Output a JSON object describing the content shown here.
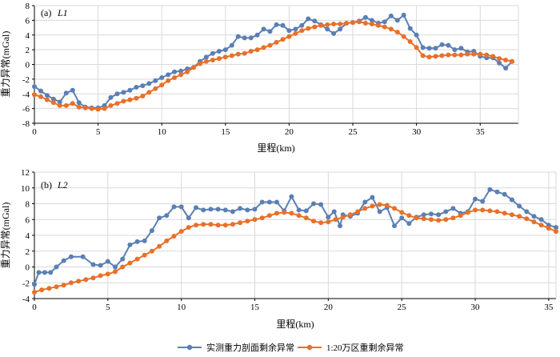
{
  "legend": {
    "series1": "实测重力剖面剩余异常",
    "series2": "1:20万区重剩余异常"
  },
  "colors": {
    "series1": "#5B7FB4",
    "series2": "#E8702A",
    "grid": "#d9d9d9",
    "axis": "#000000"
  },
  "chart_data": [
    {
      "type": "line",
      "panel_label": "(a)",
      "panel_name": "L1",
      "xlabel": "里程(km)",
      "ylabel": "重力异常(mGal)",
      "xlim": [
        0,
        38
      ],
      "ylim": [
        -8,
        8
      ],
      "xticks": [
        0,
        5,
        10,
        15,
        20,
        25,
        30,
        35
      ],
      "yticks": [
        -8,
        -6,
        -4,
        -2,
        0,
        2,
        4,
        6,
        8
      ],
      "grid": true,
      "series": [
        {
          "x": [
            0,
            0.5,
            1,
            1.5,
            2,
            2.5,
            3,
            3.5,
            4,
            4.5,
            5,
            5.5,
            6,
            6.5,
            7,
            7.5,
            8,
            8.5,
            9,
            9.5,
            10,
            10.5,
            11,
            11.5,
            12,
            12.5,
            13,
            13.5,
            14,
            14.5,
            15,
            15.5,
            16,
            16.5,
            17,
            17.5,
            18,
            18.5,
            19,
            19.5,
            20,
            20.5,
            21,
            21.5,
            22,
            22.5,
            23,
            23.5,
            24,
            24.5,
            25,
            25.5,
            26,
            26.5,
            27,
            27.5,
            28,
            28.5,
            29,
            29.5,
            30,
            30.5,
            31,
            31.5,
            32,
            32.5,
            33,
            33.5,
            34,
            34.5,
            35,
            35.5,
            36,
            36.5,
            37,
            37.5
          ],
          "values": [
            -3.0,
            -3.6,
            -4.2,
            -4.7,
            -5.1,
            -3.9,
            -3.5,
            -5.2,
            -5.8,
            -5.9,
            -5.9,
            -5.6,
            -4.5,
            -4.0,
            -3.8,
            -3.5,
            -3.1,
            -2.9,
            -2.6,
            -2.2,
            -1.8,
            -1.4,
            -1.0,
            -0.9,
            -0.6,
            -0.4,
            0.4,
            1.0,
            1.5,
            1.8,
            2.0,
            2.6,
            3.8,
            3.6,
            3.6,
            4.0,
            4.8,
            4.5,
            5.4,
            5.3,
            4.6,
            4.8,
            5.3,
            6.2,
            5.9,
            5.4,
            4.8,
            4.2,
            4.8,
            5.6,
            5.7,
            5.9,
            6.4,
            6.0,
            5.6,
            5.8,
            6.6,
            6.0,
            6.7,
            4.9,
            4.0,
            2.3,
            2.2,
            2.2,
            2.7,
            2.6,
            2.0,
            2.2,
            1.7,
            1.8,
            1.1,
            0.9,
            0.9,
            0.2,
            -0.5,
            0.4
          ]
        },
        {
          "x": [
            0,
            0.5,
            1,
            1.5,
            2,
            2.5,
            3,
            3.5,
            4,
            4.5,
            5,
            5.5,
            6,
            6.5,
            7,
            7.5,
            8,
            8.5,
            9,
            9.5,
            10,
            10.5,
            11,
            11.5,
            12,
            12.5,
            13,
            13.5,
            14,
            14.5,
            15,
            15.5,
            16,
            16.5,
            17,
            17.5,
            18,
            18.5,
            19,
            19.5,
            20,
            20.5,
            21,
            21.5,
            22,
            22.5,
            23,
            23.5,
            24,
            24.5,
            25,
            25.5,
            26,
            26.5,
            27,
            27.5,
            28,
            28.5,
            29,
            29.5,
            30,
            30.5,
            31,
            31.5,
            32,
            32.5,
            33,
            33.5,
            34,
            34.5,
            35,
            35.5,
            36,
            36.5,
            37,
            37.5
          ],
          "values": [
            -4.1,
            -4.4,
            -4.8,
            -5.2,
            -5.6,
            -5.6,
            -5.3,
            -5.8,
            -5.9,
            -6.0,
            -6.1,
            -6.0,
            -5.6,
            -5.3,
            -5.0,
            -4.8,
            -4.6,
            -4.3,
            -3.8,
            -3.3,
            -2.8,
            -2.2,
            -1.8,
            -1.4,
            -1.0,
            -0.4,
            0.1,
            0.4,
            0.6,
            0.8,
            1.0,
            1.2,
            1.4,
            1.5,
            1.8,
            2.0,
            2.3,
            2.6,
            3.0,
            3.4,
            3.8,
            4.2,
            4.6,
            4.9,
            5.1,
            5.3,
            5.4,
            5.5,
            5.5,
            5.6,
            5.7,
            5.8,
            5.6,
            5.5,
            5.3,
            5.1,
            4.8,
            4.4,
            3.8,
            3.1,
            2.3,
            1.2,
            1.0,
            1.1,
            1.2,
            1.3,
            1.3,
            1.3,
            1.4,
            1.4,
            1.4,
            1.3,
            1.1,
            0.8,
            0.6,
            0.4
          ]
        }
      ]
    },
    {
      "type": "line",
      "panel_label": "(b)",
      "panel_name": "L2",
      "xlabel": "里程(km)",
      "ylabel": "重力异常(mGal)",
      "xlim": [
        0,
        35.5
      ],
      "ylim": [
        -4,
        12
      ],
      "xticks": [
        0,
        5,
        10,
        15,
        20,
        25,
        30,
        35
      ],
      "yticks": [
        -4,
        -2,
        0,
        2,
        4,
        6,
        8,
        10,
        12
      ],
      "grid": true,
      "series": [
        {
          "x": [
            0,
            0.3,
            0.7,
            1.1,
            1.5,
            2,
            2.5,
            3.3,
            4,
            4.5,
            5,
            5.5,
            6,
            6.5,
            7,
            7.5,
            8,
            8.5,
            9,
            9.5,
            10,
            10.5,
            11,
            11.5,
            12,
            12.5,
            13,
            13.5,
            14,
            14.5,
            15,
            15.5,
            16,
            16.5,
            17,
            17.5,
            18,
            18.5,
            19,
            19.5,
            20,
            20.4,
            20.8,
            21,
            21.5,
            22,
            22.5,
            23,
            23.5,
            24,
            24.5,
            25,
            25.5,
            26,
            26.5,
            27,
            27.5,
            28,
            28.5,
            29,
            29.5,
            30,
            30.5,
            31,
            31.5,
            32,
            32.5,
            33,
            33.5,
            34,
            34.5,
            35,
            35.5
          ],
          "values": [
            -2.2,
            -0.7,
            -0.7,
            -0.7,
            0.0,
            0.8,
            1.3,
            1.3,
            0.3,
            0.2,
            0.7,
            0.0,
            1.0,
            2.8,
            3.2,
            3.3,
            4.6,
            6.2,
            6.5,
            7.6,
            7.6,
            6.2,
            7.5,
            7.2,
            7.3,
            7.3,
            7.2,
            7.0,
            7.4,
            7.2,
            7.3,
            8.2,
            8.2,
            8.2,
            7.1,
            8.9,
            7.2,
            7.1,
            8.0,
            7.9,
            6.3,
            7.0,
            5.2,
            6.6,
            6.4,
            6.8,
            8.2,
            8.8,
            7.0,
            7.5,
            5.2,
            6.2,
            5.5,
            6.3,
            6.6,
            6.7,
            6.6,
            7.0,
            7.4,
            6.8,
            7.0,
            8.6,
            8.3,
            9.8,
            9.5,
            9.2,
            8.5,
            7.7,
            7.0,
            6.4,
            6.0,
            5.3,
            5.0
          ]
        },
        {
          "x": [
            0,
            0.5,
            1,
            1.5,
            2,
            2.5,
            3,
            3.5,
            4,
            4.5,
            5,
            5.5,
            6,
            6.5,
            7,
            7.5,
            8,
            8.5,
            9,
            9.5,
            10,
            10.5,
            11,
            11.5,
            12,
            12.5,
            13,
            13.5,
            14,
            14.5,
            15,
            15.5,
            16,
            16.5,
            17,
            17.5,
            18,
            18.5,
            19,
            19.5,
            20,
            20.5,
            21,
            21.5,
            22,
            22.5,
            23,
            23.5,
            24,
            24.5,
            25,
            25.5,
            26,
            26.5,
            27,
            27.5,
            28,
            28.5,
            29,
            29.5,
            30,
            30.5,
            31,
            31.5,
            32,
            32.5,
            33,
            33.5,
            34,
            34.5,
            35,
            35.5
          ],
          "values": [
            -3.2,
            -2.9,
            -2.7,
            -2.5,
            -2.3,
            -2.0,
            -1.8,
            -1.6,
            -1.4,
            -1.1,
            -0.9,
            -0.6,
            0.0,
            0.5,
            1.0,
            1.5,
            2.0,
            2.6,
            3.3,
            3.9,
            4.5,
            5.0,
            5.3,
            5.4,
            5.4,
            5.3,
            5.3,
            5.4,
            5.6,
            5.8,
            6.0,
            6.2,
            6.5,
            6.8,
            6.9,
            6.8,
            6.5,
            6.2,
            5.8,
            5.6,
            5.7,
            6.0,
            6.3,
            6.6,
            7.0,
            7.4,
            7.7,
            7.9,
            7.8,
            7.4,
            6.9,
            6.5,
            6.2,
            6.1,
            6.0,
            5.9,
            6.0,
            6.2,
            6.5,
            6.9,
            7.2,
            7.2,
            7.1,
            7.0,
            6.8,
            6.6,
            6.4,
            6.1,
            5.7,
            5.3,
            4.9,
            4.5
          ]
        }
      ]
    }
  ]
}
